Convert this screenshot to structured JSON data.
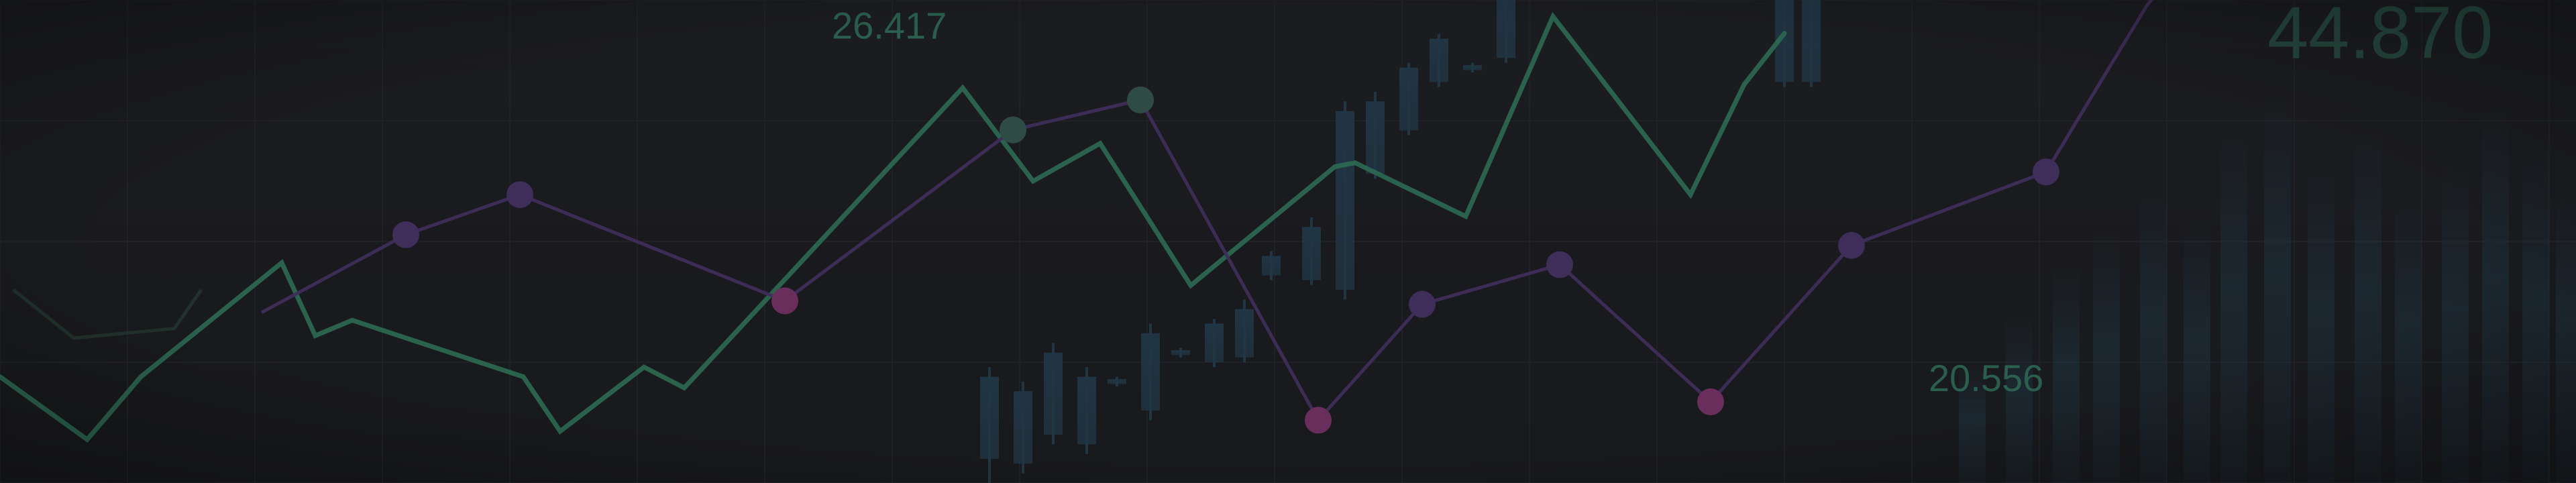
{
  "chart_data": {
    "type": "line",
    "title": "",
    "xlabel": "",
    "ylabel": "",
    "grid": true,
    "legend": "none",
    "ylim": [
      0,
      100
    ],
    "colors": {
      "background": "#1a1b1e",
      "green_line": "#2c6a52",
      "purple_line": "#3f2d5a",
      "purple_accent": "#6a2e5d",
      "candle": "#213645",
      "label": "#2e6b55"
    },
    "series": [
      {
        "style": "green-line",
        "points": [
          [
            0,
            22
          ],
          [
            130,
            9
          ],
          [
            210,
            22
          ],
          [
            420,
            45.6
          ],
          [
            470,
            30.5
          ],
          [
            525,
            33.7
          ],
          [
            780,
            22
          ],
          [
            835,
            10.7
          ],
          [
            960,
            24
          ],
          [
            1020,
            19.7
          ],
          [
            1435,
            81.8
          ],
          [
            1540,
            62.5
          ],
          [
            1640,
            70.3
          ],
          [
            1775,
            40.9
          ],
          [
            1990,
            65.5
          ],
          [
            2020,
            66.3
          ],
          [
            2185,
            55.2
          ],
          [
            2315,
            96.6
          ],
          [
            2520,
            59.7
          ],
          [
            2600,
            82.5
          ],
          [
            2660,
            93.1
          ]
        ]
      },
      {
        "style": "purple-line",
        "points": [
          [
            390,
            35.3
          ],
          [
            605,
            51.4
          ],
          [
            775,
            59.7
          ],
          [
            1170,
            37.7
          ],
          [
            1510,
            73.1
          ],
          [
            1700,
            79.3
          ],
          [
            1965,
            13
          ],
          [
            2120,
            37
          ],
          [
            2325,
            45.2
          ],
          [
            2550,
            16.8
          ],
          [
            2760,
            49.2
          ],
          [
            3050,
            64.4
          ],
          [
            3200,
            98.8
          ],
          [
            3320,
            120
          ]
        ],
        "markers": [
          [
            605,
            51.4
          ],
          [
            775,
            59.7
          ],
          [
            1170,
            37.7
          ],
          [
            1510,
            73.1
          ],
          [
            1700,
            79.3
          ],
          [
            1965,
            13
          ],
          [
            2120,
            37
          ],
          [
            2325,
            45.2
          ],
          [
            2550,
            16.8
          ],
          [
            2760,
            49.2
          ],
          [
            3050,
            64.4
          ]
        ],
        "accent_markers": [
          [
            1170,
            37.7
          ],
          [
            1965,
            13
          ],
          [
            2550,
            16.8
          ]
        ]
      },
      {
        "style": "faint-green-line",
        "points": [
          [
            20,
            40
          ],
          [
            110,
            30
          ],
          [
            260,
            32
          ],
          [
            300,
            40
          ]
        ]
      }
    ],
    "candles": [
      {
        "x": 1475,
        "low": 0,
        "high": 24,
        "open": 5,
        "close": 22
      },
      {
        "x": 1525,
        "low": 2,
        "high": 21,
        "open": 4,
        "close": 19
      },
      {
        "x": 1570,
        "low": 8,
        "high": 29,
        "open": 10,
        "close": 27
      },
      {
        "x": 1620,
        "low": 6,
        "high": 24,
        "open": 8,
        "close": 22
      },
      {
        "x": 1665,
        "low": 20,
        "high": 22,
        "open": 20.5,
        "close": 21.5
      },
      {
        "x": 1715,
        "low": 13,
        "high": 33,
        "open": 15,
        "close": 31
      },
      {
        "x": 1760,
        "low": 26,
        "high": 28,
        "open": 26.5,
        "close": 27.5
      },
      {
        "x": 1810,
        "low": 24,
        "high": 34,
        "open": 25,
        "close": 33
      },
      {
        "x": 1855,
        "low": 25,
        "high": 38,
        "open": 26,
        "close": 36
      },
      {
        "x": 1895,
        "low": 42,
        "high": 48,
        "open": 43,
        "close": 47
      },
      {
        "x": 1955,
        "low": 41,
        "high": 55,
        "open": 42,
        "close": 53
      },
      {
        "x": 2005,
        "low": 38,
        "high": 79,
        "open": 40,
        "close": 77
      },
      {
        "x": 2050,
        "low": 63,
        "high": 81,
        "open": 64,
        "close": 79
      },
      {
        "x": 2100,
        "low": 72,
        "high": 87,
        "open": 73,
        "close": 86
      },
      {
        "x": 2145,
        "low": 82,
        "high": 93,
        "open": 83,
        "close": 92
      },
      {
        "x": 2195,
        "low": 85,
        "high": 87,
        "open": 85.5,
        "close": 86.5
      },
      {
        "x": 2245,
        "low": 87,
        "high": 100,
        "open": 88,
        "close": 100
      },
      {
        "x": 2660,
        "low": 82,
        "high": 100,
        "open": 83,
        "close": 100
      },
      {
        "x": 2700,
        "low": 82,
        "high": 100,
        "open": 83,
        "close": 100
      }
    ],
    "annotations": [
      {
        "text": "26.417",
        "x": 1240,
        "y": 92
      },
      {
        "text": "44.870",
        "x": 3380,
        "y": 88
      },
      {
        "text": "20.556",
        "x": 2875,
        "y": 19
      }
    ]
  }
}
